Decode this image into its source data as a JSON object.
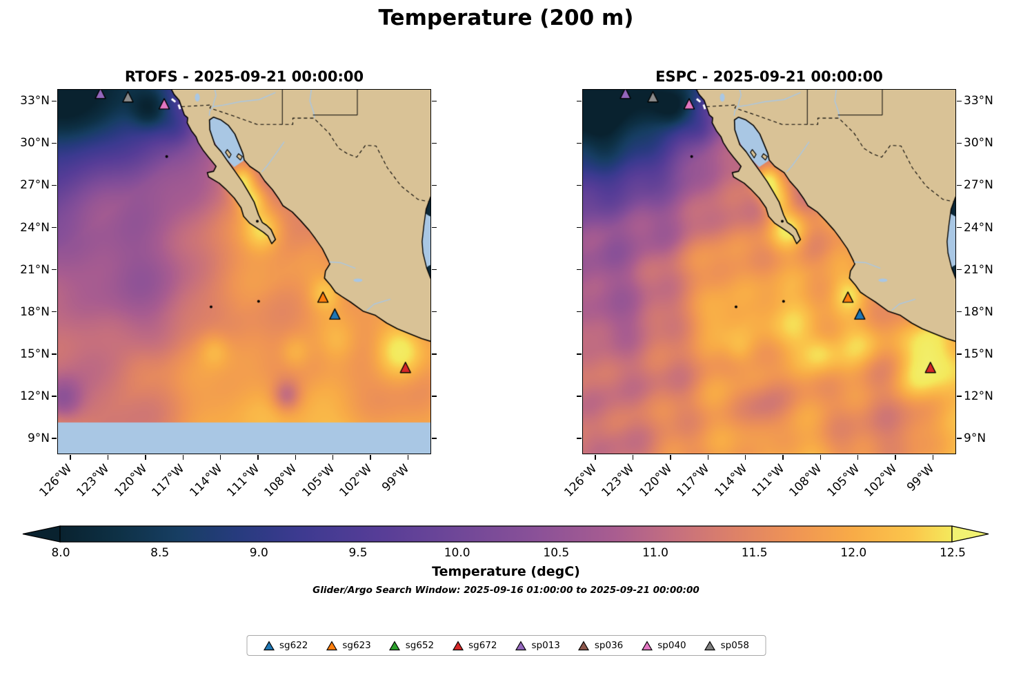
{
  "figure": {
    "title": "Temperature (200 m)",
    "search_window": "Glider/Argo Search Window: 2025-09-16 01:00:00 to 2025-09-21 00:00:00"
  },
  "panels": [
    {
      "id": "rtofs",
      "title": "RTOFS - 2025-09-21 00:00:00"
    },
    {
      "id": "espc",
      "title": "ESPC - 2025-09-21 00:00:00"
    }
  ],
  "axes": {
    "extent": {
      "lon_min": -127.0,
      "lon_max": -97.2,
      "lat_min": 7.92,
      "lat_max": 33.8
    },
    "lon_ticks": [
      {
        "value": -126,
        "label": "126°W"
      },
      {
        "value": -123,
        "label": "123°W"
      },
      {
        "value": -120,
        "label": "120°W"
      },
      {
        "value": -117,
        "label": "117°W"
      },
      {
        "value": -114,
        "label": "114°W"
      },
      {
        "value": -111,
        "label": "111°W"
      },
      {
        "value": -108,
        "label": "108°W"
      },
      {
        "value": -105,
        "label": "105°W"
      },
      {
        "value": -102,
        "label": "102°W"
      },
      {
        "value": -99,
        "label": "99°W"
      }
    ],
    "lat_ticks": [
      {
        "value": 33,
        "label": "33°N"
      },
      {
        "value": 30,
        "label": "30°N"
      },
      {
        "value": 27,
        "label": "27°N"
      },
      {
        "value": 24,
        "label": "24°N"
      },
      {
        "value": 21,
        "label": "21°N"
      },
      {
        "value": 18,
        "label": "18°N"
      },
      {
        "value": 15,
        "label": "15°N"
      },
      {
        "value": 12,
        "label": "12°N"
      },
      {
        "value": 9,
        "label": "9°N"
      }
    ]
  },
  "colorbar": {
    "label": "Temperature (degC)",
    "min": 8.0,
    "max": 12.5,
    "ticks": [
      {
        "value": 8.0,
        "label": "8.0"
      },
      {
        "value": 8.5,
        "label": "8.5"
      },
      {
        "value": 9.0,
        "label": "9.0"
      },
      {
        "value": 9.5,
        "label": "9.5"
      },
      {
        "value": 10.0,
        "label": "10.0"
      },
      {
        "value": 10.5,
        "label": "10.5"
      },
      {
        "value": 11.0,
        "label": "11.0"
      },
      {
        "value": 11.5,
        "label": "11.5"
      },
      {
        "value": 12.0,
        "label": "12.0"
      },
      {
        "value": 12.5,
        "label": "12.5"
      }
    ],
    "stops": [
      {
        "t": 7.9,
        "color": "#09222f"
      },
      {
        "t": 8.3,
        "color": "#0e3146"
      },
      {
        "t": 8.6,
        "color": "#173e63"
      },
      {
        "t": 8.9,
        "color": "#273b7e"
      },
      {
        "t": 9.2,
        "color": "#3c3a90"
      },
      {
        "t": 9.6,
        "color": "#563d97"
      },
      {
        "t": 10.0,
        "color": "#6f4798"
      },
      {
        "t": 10.4,
        "color": "#8a5198"
      },
      {
        "t": 10.8,
        "color": "#a95d90"
      },
      {
        "t": 11.1,
        "color": "#c56f7f"
      },
      {
        "t": 11.4,
        "color": "#dd8168"
      },
      {
        "t": 11.7,
        "color": "#ef9455"
      },
      {
        "t": 12.0,
        "color": "#f8ab47"
      },
      {
        "t": 12.3,
        "color": "#fbc64b"
      },
      {
        "t": 12.55,
        "color": "#f4e95c"
      },
      {
        "t": 12.9,
        "color": "#f1f272"
      }
    ]
  },
  "legend": {
    "items": [
      {
        "id": "sg622",
        "label": "sg622",
        "color": "#1f77b4"
      },
      {
        "id": "sg623",
        "label": "sg623",
        "color": "#ff7f0e"
      },
      {
        "id": "sg652",
        "label": "sg652",
        "color": "#2ca02c"
      },
      {
        "id": "sg672",
        "label": "sg672",
        "color": "#d62728"
      },
      {
        "id": "sp013",
        "label": "sp013",
        "color": "#9467bd"
      },
      {
        "id": "sp036",
        "label": "sp036",
        "color": "#8c564b"
      },
      {
        "id": "sp040",
        "label": "sp040",
        "color": "#e377c2"
      },
      {
        "id": "sp058",
        "label": "sp058",
        "color": "#7f7f7f"
      }
    ]
  },
  "map_markers": [
    {
      "id": "sp013",
      "lon": -123.6,
      "lat": 33.45,
      "color": "#9467bd"
    },
    {
      "id": "sp058",
      "lon": -121.4,
      "lat": 33.2,
      "color": "#8c8c8c"
    },
    {
      "id": "sp040",
      "lon": -118.5,
      "lat": 32.7,
      "color": "#e377c2"
    },
    {
      "id": "sg623",
      "lon": -105.8,
      "lat": 18.95,
      "color": "#ff7f0e"
    },
    {
      "id": "sg622",
      "lon": -104.85,
      "lat": 17.75,
      "color": "#1f77b4"
    },
    {
      "id": "sg672",
      "lon": -99.2,
      "lat": 13.95,
      "color": "#d62728"
    }
  ],
  "map_colors": {
    "land": "#d9c296",
    "shallow_water": "#a9c7e4",
    "coastline": "#000000",
    "figure_bg": "#ffffff"
  },
  "chart_data": {
    "type": "heatmap",
    "title": "Temperature (200 m)",
    "variable": "Temperature",
    "units": "degC",
    "depth_m": 200,
    "panels": [
      {
        "name": "RTOFS",
        "valid_time": "2025-09-21 00:00:00"
      },
      {
        "name": "ESPC",
        "valid_time": "2025-09-21 00:00:00"
      }
    ],
    "lon_ticks_deg_w": [
      126,
      123,
      120,
      117,
      114,
      111,
      108,
      105,
      102,
      99
    ],
    "lat_ticks_deg_n": [
      33,
      30,
      27,
      24,
      21,
      18,
      15,
      12,
      9
    ],
    "colorbar_range": [
      8.0,
      12.5
    ],
    "colorbar_tick_step": 0.5,
    "search_window": {
      "start": "2025-09-16 01:00:00",
      "end": "2025-09-21 00:00:00"
    },
    "platforms": [
      {
        "id": "sg622",
        "approx_lon": -104.85,
        "approx_lat": 17.75
      },
      {
        "id": "sg623",
        "approx_lon": -105.8,
        "approx_lat": 18.95
      },
      {
        "id": "sg652",
        "approx_lon": null,
        "approx_lat": null
      },
      {
        "id": "sg672",
        "approx_lon": -99.2,
        "approx_lat": 13.95
      },
      {
        "id": "sp013",
        "approx_lon": -123.6,
        "approx_lat": 33.45
      },
      {
        "id": "sp036",
        "approx_lon": null,
        "approx_lat": null
      },
      {
        "id": "sp040",
        "approx_lon": -118.5,
        "approx_lat": 32.7
      },
      {
        "id": "sp058",
        "approx_lon": -121.4,
        "approx_lat": 33.2
      }
    ]
  }
}
